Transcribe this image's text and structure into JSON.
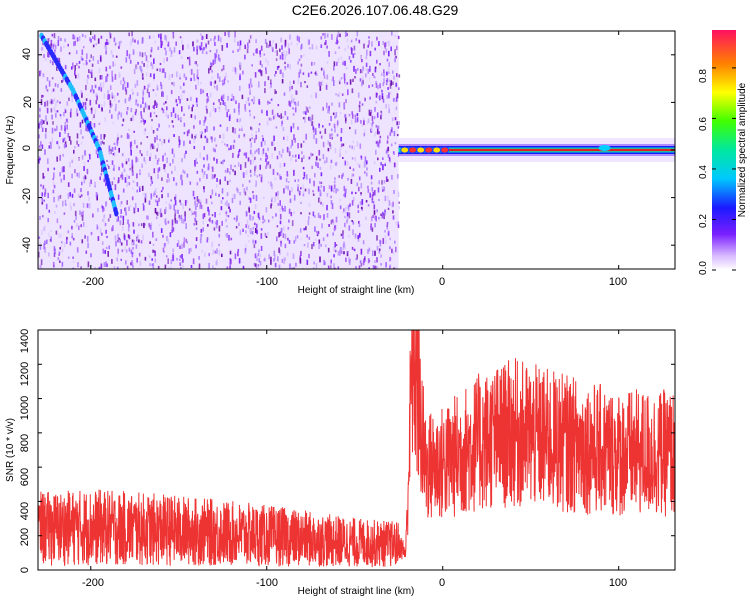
{
  "title": "C2E6.2026.107.06.48.G29",
  "charts": {
    "spectrogram": {
      "xlabel": "Height of straight line (km)",
      "ylabel": "Frequency (Hz)",
      "xticks": [
        "-200",
        "-100",
        "0",
        "100"
      ],
      "yticks": [
        "40",
        "20",
        "0",
        "-20",
        "-40"
      ]
    },
    "colorbar": {
      "label": "Normalized spectral amplitude",
      "ticks": [
        "0.8",
        "0.6",
        "0.4",
        "0.2",
        "0.0"
      ]
    },
    "snr": {
      "xlabel": "Height of straight line (km)",
      "ylabel": "SNR (10 * v/v)",
      "xticks": [
        "-200",
        "-100",
        "0",
        "100"
      ],
      "yticks": [
        "1400",
        "1200",
        "1000",
        "800",
        "600",
        "400",
        "200",
        "0"
      ]
    }
  },
  "chart_data": [
    {
      "type": "heatmap",
      "xlabel": "Height of straight line (km)",
      "ylabel": "Frequency (Hz)",
      "xlim": [
        -230,
        132
      ],
      "ylim": [
        -50,
        50
      ],
      "colorbar": {
        "label": "Normalized spectral amplitude",
        "range": [
          0.0,
          0.95
        ]
      },
      "description_points": {
        "noise_region_x": [
          -230,
          -25
        ],
        "diagonal_trace": {
          "x": [
            -228,
            -210,
            -195,
            -185
          ],
          "y": [
            48,
            25,
            0,
            -28
          ]
        },
        "carrier_line": {
          "x": [
            -25,
            132
          ],
          "y": [
            0,
            0
          ]
        }
      }
    },
    {
      "type": "line",
      "xlabel": "Height of straight line (km)",
      "ylabel": "SNR (10 * v/v)",
      "xlim": [
        -230,
        132
      ],
      "ylim": [
        0,
        1400
      ],
      "series": [
        {
          "x": [
            -230,
            -200,
            -150,
            -100,
            -50,
            -25,
            -21,
            -20,
            -17,
            -10,
            0,
            20,
            40,
            80,
            100,
            132
          ],
          "y": [
            240,
            250,
            230,
            200,
            160,
            150,
            100,
            400,
            1320,
            600,
            620,
            740,
            800,
            720,
            680,
            680
          ],
          "color": "#ee3333"
        }
      ]
    }
  ]
}
